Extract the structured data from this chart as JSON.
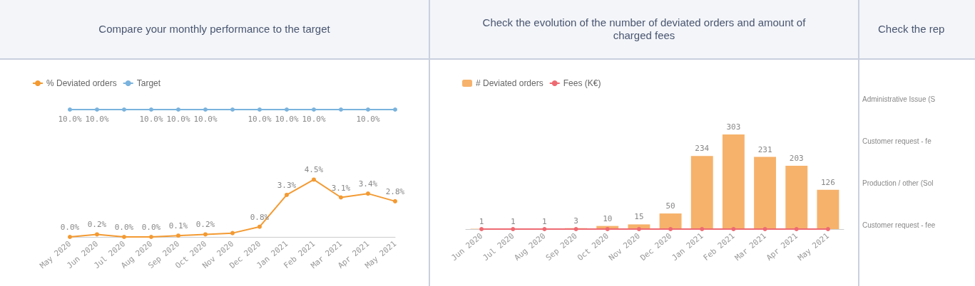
{
  "chart_data": [
    {
      "type": "line",
      "title": "Compare your monthly performance to the target",
      "categories": [
        "May 2020",
        "Jun 2020",
        "Jul 2020",
        "Aug 2020",
        "Sep 2020",
        "Oct 2020",
        "Nov 2020",
        "Dec 2020",
        "Jan 2021",
        "Feb 2021",
        "Mar 2021",
        "Apr 2021",
        "May 2021"
      ],
      "series": [
        {
          "name": "% Deviated orders",
          "color": "#f39a32",
          "values": [
            0.0,
            0.2,
            0.0,
            0.0,
            0.1,
            0.2,
            0.3,
            0.8,
            3.3,
            4.5,
            3.1,
            3.4,
            2.8
          ],
          "value_labels": [
            "0.0%",
            "0.2%",
            "0.0%",
            "0.0%",
            "0.1%",
            "0.2%",
            null,
            "0.8%",
            "3.3%",
            "4.5%",
            "3.1%",
            "3.4%",
            "2.8%"
          ]
        },
        {
          "name": "Target",
          "color": "#7ab3dd",
          "values": [
            10,
            10,
            10,
            10,
            10,
            10,
            10,
            10,
            10,
            10,
            10,
            10,
            10
          ],
          "value_labels": [
            "10.0%",
            "10.0%",
            null,
            "10.0%",
            "10.0%",
            "10.0%",
            null,
            "10.0%",
            "10.0%",
            "10.0%",
            null,
            "10.0%",
            null
          ]
        }
      ],
      "tick_labels": "x",
      "legend": "top left",
      "marker": "circle"
    },
    {
      "type": "bar",
      "title": "Check the evolution of the number of deviated orders and amount of charged fees",
      "categories": [
        "Jun 2020",
        "Jul 2020",
        "Aug 2020",
        "Sep 2020",
        "Oct 2020",
        "Nov 2020",
        "Dec 2020",
        "Jan 2021",
        "Feb 2021",
        "Mar 2021",
        "Apr 2021",
        "May 2021"
      ],
      "series": [
        {
          "name": "# Deviated orders",
          "color": "#f6b26b",
          "values": [
            1,
            1,
            1,
            3,
            10,
            15,
            50,
            234,
            303,
            231,
            203,
            126
          ],
          "value_labels": [
            "1",
            "1",
            "1",
            "3",
            "10",
            "15",
            "50",
            "234",
            "303",
            "231",
            "203",
            "126"
          ]
        },
        {
          "name": "Fees (K€)",
          "type": "line",
          "color": "#ee6a72",
          "values": [
            0,
            0,
            0,
            0,
            0,
            0,
            0,
            0,
            0,
            0,
            0,
            0
          ]
        }
      ],
      "tick_labels": "x",
      "legend": "top left",
      "marker": "circle"
    },
    {
      "type": "other",
      "title": "Check the rep",
      "annotations": [
        "Administrative Issue (S",
        "Customer request - fe",
        "Production / other (Sol",
        "Customer request - fee"
      ]
    }
  ]
}
